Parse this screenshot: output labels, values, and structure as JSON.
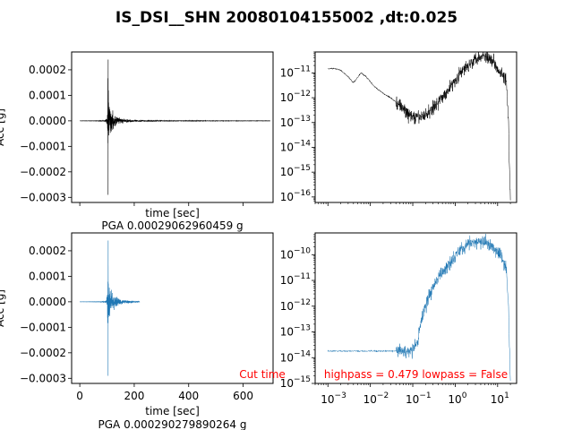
{
  "figure": {
    "suptitle": "IS_DSI__SHN 20080104155002 ,dt:0.025"
  },
  "chart_data": [
    {
      "type": "line",
      "panel": "top-left",
      "xlabel": "time [sec]",
      "ylabel": "Acc [g]",
      "xlim": [
        -30,
        710
      ],
      "ylim": [
        -0.00032,
        0.00027
      ],
      "x_ticks": [
        0,
        200,
        400,
        600
      ],
      "x_tick_labels_visible": false,
      "y_ticks": [
        0.0002,
        0.0001,
        0.0,
        -0.0001,
        -0.0002,
        -0.0003
      ],
      "y_tick_labels": [
        "0.0002",
        "0.0001",
        "0.0000",
        "−0.0001",
        "−0.0002",
        "−0.0003"
      ],
      "footer": "PGA 0.00029062960459 g",
      "color": "#000000",
      "series": [
        {
          "x": [
            0,
            90,
            100,
            103,
            104,
            106,
            108,
            112,
            120,
            140,
            160,
            200,
            250,
            300,
            400,
            500,
            600,
            700
          ],
          "envelope": [
            3e-07,
            2e-06,
            3e-05,
            0.00024,
            0.00029,
            0.00018,
            0.00012,
            8e-05,
            5e-05,
            2.5e-05,
            1.2e-05,
            6e-06,
            3e-06,
            2e-06,
            1.5e-06,
            1.2e-06,
            1e-06,
            8e-07
          ]
        }
      ]
    },
    {
      "type": "line",
      "panel": "top-right",
      "xscale": "log",
      "yscale": "log",
      "xlim": [
        0.0005,
        28
      ],
      "ylim": [
        6e-17,
        7e-11
      ],
      "y_ticks": [
        1e-11,
        1e-12,
        1e-13,
        1e-14,
        1e-15,
        1e-16
      ],
      "y_tick_labels": [
        "10−11",
        "10−12",
        "10−13",
        "10−14",
        "10−15",
        "10−16"
      ],
      "x_tick_labels_visible": false,
      "color": "#000000",
      "series": [
        {
          "x": [
            0.001,
            0.0015,
            0.002,
            0.003,
            0.004,
            0.006,
            0.008,
            0.012,
            0.02,
            0.03,
            0.05,
            0.08,
            0.12,
            0.2,
            0.3,
            0.5,
            0.8,
            1.2,
            2,
            3,
            5,
            8,
            12,
            16,
            18,
            19,
            20
          ],
          "y": [
            1.5e-11,
            1.5e-11,
            1.3e-11,
            7e-12,
            4e-12,
            1e-11,
            7e-12,
            3e-12,
            1.5e-12,
            1e-12,
            5e-13,
            2e-13,
            1.5e-13,
            2e-13,
            4e-13,
            1e-12,
            3e-12,
            8e-12,
            2e-11,
            4e-11,
            5e-11,
            3e-11,
            1e-11,
            5e-12,
            1e-13,
            1e-15,
            8e-17
          ]
        }
      ]
    },
    {
      "type": "line",
      "panel": "bottom-left",
      "xlabel": "time [sec]",
      "ylabel": "Acc [g]",
      "xlim": [
        -30,
        710
      ],
      "ylim": [
        -0.00032,
        0.00027
      ],
      "x_ticks": [
        0,
        200,
        400,
        600
      ],
      "x_tick_labels": [
        "0",
        "200",
        "400",
        "600"
      ],
      "y_ticks": [
        0.0002,
        0.0001,
        0.0,
        -0.0001,
        -0.0002,
        -0.0003
      ],
      "y_tick_labels": [
        "0.0002",
        "0.0001",
        "0.0000",
        "−0.0001",
        "−0.0002",
        "−0.0003"
      ],
      "annotation": "Cut time",
      "footer": "PGA 0.000290279890264 g",
      "color": "#1f77b4",
      "series": [
        {
          "x": [
            0,
            90,
            100,
            103,
            104,
            106,
            108,
            112,
            120,
            140,
            160,
            200,
            220
          ],
          "envelope": [
            3e-07,
            2e-06,
            3e-05,
            0.00024,
            0.00029,
            0.00018,
            0.00012,
            8e-05,
            5e-05,
            2.5e-05,
            1.2e-05,
            6e-06,
            3e-06
          ]
        }
      ]
    },
    {
      "type": "line",
      "panel": "bottom-right",
      "xscale": "log",
      "yscale": "log",
      "xlim": [
        0.0005,
        28
      ],
      "ylim": [
        1e-15,
        7e-10
      ],
      "x_ticks": [
        0.001,
        0.01,
        0.1,
        1,
        10
      ],
      "x_tick_labels": [
        "10−3",
        "10−2",
        "10−1",
        "100",
        "101"
      ],
      "y_ticks": [
        1e-10,
        1e-11,
        1e-12,
        1e-13,
        1e-14,
        1e-15
      ],
      "y_tick_labels": [
        "10−10",
        "10−11",
        "10−12",
        "10−13",
        "10−14",
        "10−15"
      ],
      "annotation": "highpass = 0.479 lowpass = False",
      "color": "#1f77b4",
      "series": [
        {
          "x": [
            0.001,
            0.01,
            0.05,
            0.1,
            0.13,
            0.15,
            0.2,
            0.3,
            0.5,
            0.8,
            1.2,
            2,
            3,
            5,
            8,
            12,
            16,
            18,
            19,
            20
          ],
          "y": [
            1.8e-14,
            1.8e-14,
            1.8e-14,
            1.8e-14,
            4e-14,
            2e-13,
            1e-12,
            6e-12,
            2e-11,
            6e-11,
            1.5e-10,
            2.5e-10,
            3e-10,
            3e-10,
            2e-10,
            1e-10,
            3e-11,
            1e-12,
            3e-14,
            1e-15
          ]
        }
      ]
    }
  ],
  "annotation_color": "#ff0000"
}
